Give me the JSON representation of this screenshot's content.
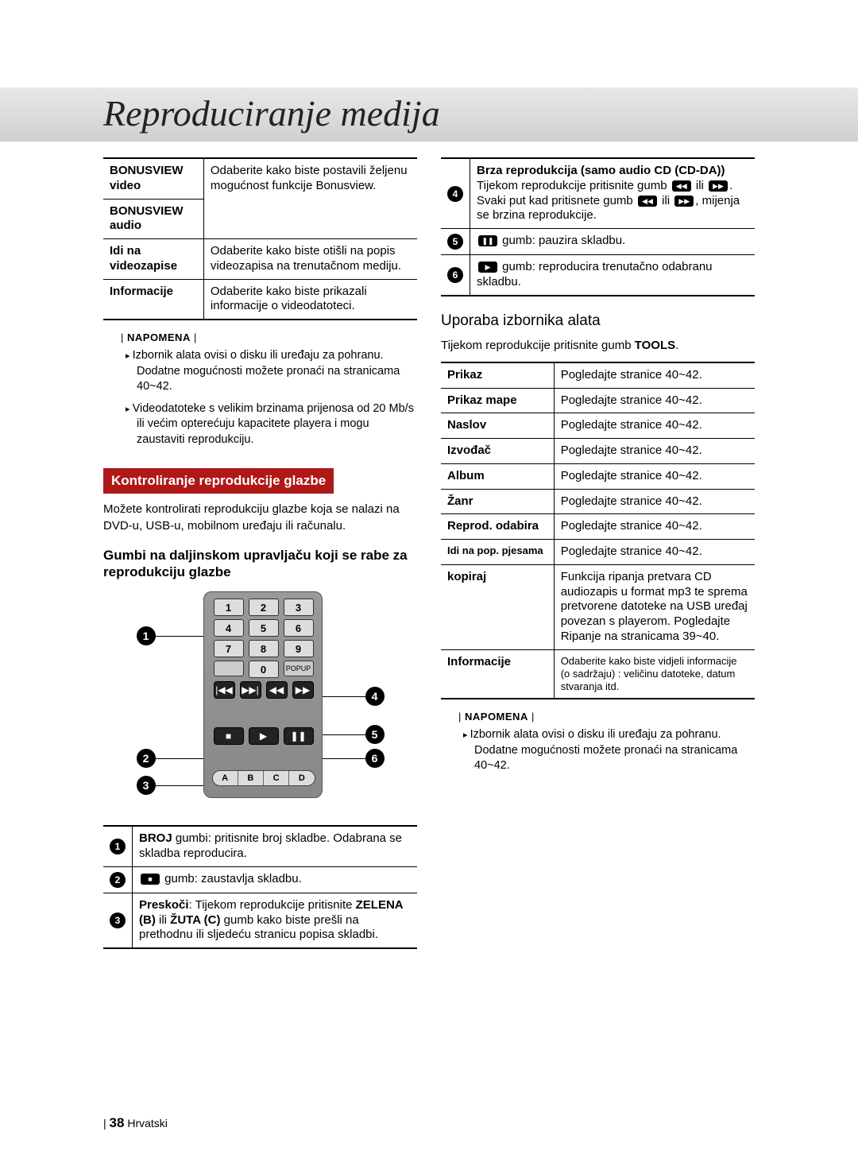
{
  "page": {
    "title": "Reproduciranje medija",
    "footer_number": "38",
    "footer_lang": "Hrvatski"
  },
  "left": {
    "bonusview_table": {
      "row_bv_video_label": "BONUSVIEW video",
      "row_bv_audio_label": "BONUSVIEW audio",
      "row_bv_desc": "Odaberite kako biste postavili željenu mogućnost funkcije Bonusview.",
      "row_idi_label": "Idi na videozapise",
      "row_idi_desc": "Odaberite kako biste otišli na popis videozapisa na trenutačnom mediju.",
      "row_info_label": "Informacije",
      "row_info_desc": "Odaberite kako biste prikazali informacije o videodatoteci."
    },
    "napomena_label": "NAPOMENA",
    "note1": "Izbornik alata ovisi o disku ili uređaju za pohranu. Dodatne mogućnosti možete pronaći na stranicama 40~42.",
    "note2": "Videodatoteke s velikim brzinama prijenosa od 20 Mb/s ili većim opterećuju kapacitete playera i mogu zaustaviti reprodukciju.",
    "section_red": "Kontroliranje reprodukcije glazbe",
    "section_para": "Možete kontrolirati reprodukciju glazbe koja se nalazi na DVD-u, USB-u, mobilnom uređaju ili računalu.",
    "subhead": "Gumbi na daljinskom upravljaču koji se rabe za reprodukciju glazbe",
    "remote": {
      "k1": "1",
      "k2": "2",
      "k3": "3",
      "k4": "4",
      "k5": "5",
      "k6": "6",
      "k7": "7",
      "k8": "8",
      "k9": "9",
      "k0": "0",
      "popup": "POPUP",
      "a": "A",
      "b": "B",
      "c": "C",
      "d": "D"
    },
    "buttons_table": {
      "r1_bold": "BROJ",
      "r1_rest": " gumbi: pritisnite broj skladbe. Odabrana se skladba reproducira.",
      "r2": " gumb: zaustavlja skladbu.",
      "r3_bold1": "Preskoči",
      "r3_mid": ": Tijekom reprodukcije pritisnite ",
      "r3_bold2": "ZELENA (B)",
      "r3_mid2": " ili ",
      "r3_bold3": "ŽUTA (C)",
      "r3_rest": " gumb kako biste prešli na prethodnu ili sljedeću stranicu popisa skladbi."
    }
  },
  "right": {
    "top_table": {
      "r4_title": "Brza reprodukcija (samo audio CD (CD-DA))",
      "r4_line1a": "Tijekom reprodukcije pritisnite gumb ",
      "r4_line1b": " ili ",
      "r4_line1c": ".",
      "r4_line2a": "Svaki put kad pritisnete gumb ",
      "r4_line2b": " ili ",
      "r4_line2c": ", mijenja se brzina reprodukcije.",
      "r5": " gumb: pauzira skladbu.",
      "r6": " gumb: reproducira trenutačno odabranu skladbu."
    },
    "subhead2": "Uporaba izbornika alata",
    "para2_a": "Tijekom reprodukcije pritisnite gumb ",
    "para2_bold": "TOOLS",
    "para2_b": ".",
    "tools_table": {
      "rows": [
        {
          "l": "Prikaz",
          "r": "Pogledajte stranice 40~42."
        },
        {
          "l": "Prikaz mape",
          "r": "Pogledajte stranice 40~42."
        },
        {
          "l": "Naslov",
          "r": "Pogledajte stranice 40~42."
        },
        {
          "l": "Izvođač",
          "r": "Pogledajte stranice 40~42."
        },
        {
          "l": "Album",
          "r": "Pogledajte stranice 40~42."
        },
        {
          "l": "Žanr",
          "r": "Pogledajte stranice 40~42."
        },
        {
          "l": "Reprod. odabira",
          "r": "Pogledajte stranice 40~42."
        },
        {
          "l": "Idi na pop. pjesama",
          "r": "Pogledajte stranice 40~42."
        },
        {
          "l": "kopiraj",
          "r": "Funkcija ripanja pretvara CD audiozapis u format mp3 te sprema pretvorene datoteke na USB uređaj povezan s playerom. Pogledajte Ripanje na stranicama 39~40."
        },
        {
          "l": "Informacije",
          "r": "Odaberite kako biste vidjeli informacije (o sadržaju) : veličinu datoteke, datum stvaranja itd."
        }
      ]
    },
    "napomena_label": "NAPOMENA",
    "note1": "Izbornik alata ovisi o disku ili uređaju za pohranu. Dodatne mogućnosti možete pronaći na stranicama 40~42."
  }
}
